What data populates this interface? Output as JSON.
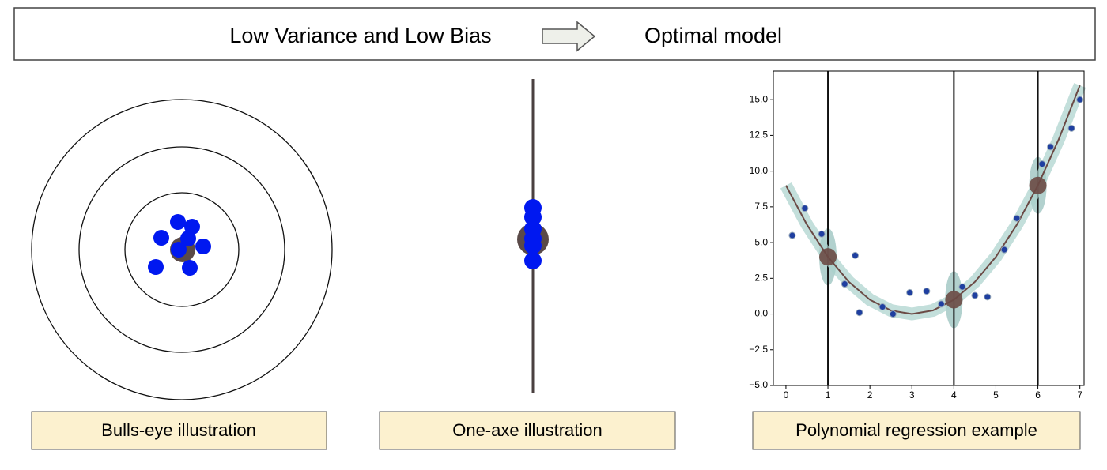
{
  "header": {
    "left": "Low Variance and Low Bias",
    "right": "Optimal model"
  },
  "panels": [
    {
      "caption": "Bulls-eye illustration"
    },
    {
      "caption": "One-axe illustration"
    },
    {
      "caption": "Polynomial regression example"
    }
  ],
  "chart_data": {
    "type": "scatter",
    "xlim": [
      -0.3,
      7.1
    ],
    "ylim": [
      -5,
      17
    ],
    "xticks": [
      0,
      1,
      2,
      3,
      4,
      5,
      6,
      7
    ],
    "yticks": [
      {
        "value": -5,
        "label": "−5.0"
      },
      {
        "value": -2.5,
        "label": "−2.5"
      },
      {
        "value": 0,
        "label": "0.0"
      },
      {
        "value": 2.5,
        "label": "2.5"
      },
      {
        "value": 5,
        "label": "5.0"
      },
      {
        "value": 7.5,
        "label": "7.5"
      },
      {
        "value": 10,
        "label": "10.0"
      },
      {
        "value": 12.5,
        "label": "12.5"
      },
      {
        "value": 15,
        "label": "15.0"
      }
    ],
    "x": [
      0.15,
      0.45,
      0.85,
      1.4,
      1.65,
      1.75,
      2.3,
      2.55,
      2.95,
      3.35,
      3.7,
      4.2,
      4.5,
      4.8,
      5.2,
      5.5,
      6.1,
      6.3,
      6.8,
      7.0
    ],
    "series": [
      {
        "color": "#1f3fa0",
        "values": [
          5.5,
          7.4,
          5.6,
          2.1,
          4.1,
          0.1,
          0.5,
          0.0,
          1.5,
          1.6,
          0.7,
          1.9,
          1.3,
          1.2,
          4.5,
          6.7,
          10.5,
          11.7,
          13.0,
          15.0
        ]
      }
    ],
    "curve": {
      "color": "#6b4a45",
      "x": [
        0,
        0.5,
        1,
        1.5,
        2,
        2.5,
        3,
        3.5,
        4,
        4.5,
        5,
        5.5,
        6,
        6.5,
        7
      ],
      "values": [
        9,
        6.25,
        4,
        2.25,
        1,
        0.25,
        0,
        0.25,
        1,
        2.25,
        4,
        6.25,
        9,
        12.25,
        16
      ]
    },
    "vlines": [
      1,
      4,
      6
    ],
    "targets": {
      "color": "#6b4a45",
      "x": [
        1,
        4,
        6
      ],
      "values": [
        4,
        1,
        9
      ]
    }
  }
}
